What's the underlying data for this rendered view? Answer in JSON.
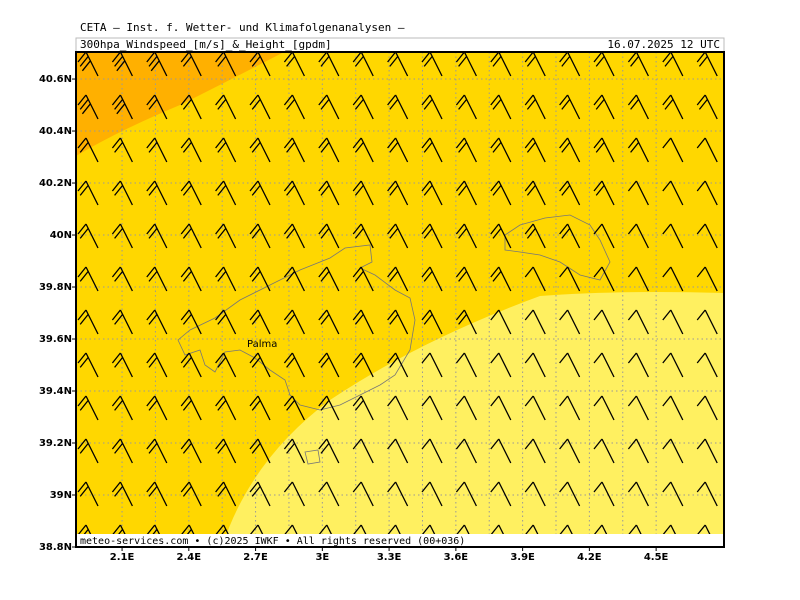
{
  "header": {
    "institute": "CETA – Inst. f. Wetter- und Klimafolgenanalysen –",
    "product": "300hpa_Windspeed_[m/s]_&_Height_[gpdm]",
    "valid_time": "16.07.2025 12 UTC"
  },
  "map": {
    "xlim": [
      1.893,
      4.805
    ],
    "ylim": [
      38.8,
      40.704
    ],
    "xticks": [
      {
        "value": 2.1,
        "label": "2.1E"
      },
      {
        "value": 2.4,
        "label": "2.4E"
      },
      {
        "value": 2.7,
        "label": "2.7E"
      },
      {
        "value": 3.0,
        "label": "3E"
      },
      {
        "value": 3.3,
        "label": "3.3E"
      },
      {
        "value": 3.6,
        "label": "3.6E"
      },
      {
        "value": 3.9,
        "label": "3.9E"
      },
      {
        "value": 4.2,
        "label": "4.2E"
      },
      {
        "value": 4.5,
        "label": "4.5E"
      }
    ],
    "yticks": [
      {
        "value": 38.8,
        "label": "38.8N"
      },
      {
        "value": 39.0,
        "label": "39N"
      },
      {
        "value": 39.2,
        "label": "39.2N"
      },
      {
        "value": 39.4,
        "label": "39.4N"
      },
      {
        "value": 39.6,
        "label": "39.6N"
      },
      {
        "value": 39.8,
        "label": "39.8N"
      },
      {
        "value": 40.0,
        "label": "40N"
      },
      {
        "value": 40.2,
        "label": "40.2N"
      },
      {
        "value": 40.4,
        "label": "40.4N"
      },
      {
        "value": 40.6,
        "label": "40.6N"
      }
    ],
    "city": "Palma"
  },
  "footer": "meteo-services.com • (c)2025 IWKF • All rights reserved (00+036)"
}
